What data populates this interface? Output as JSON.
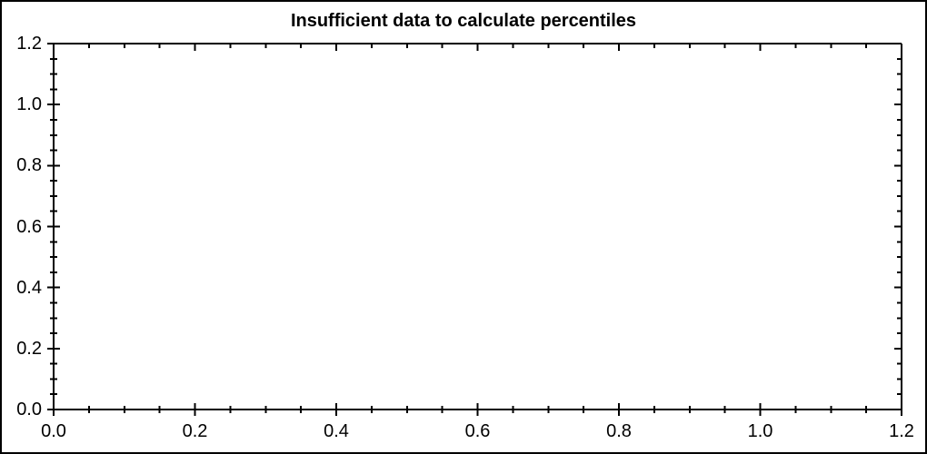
{
  "window": {
    "background": "#ffffff",
    "border_color": "#000000"
  },
  "chart_data": {
    "type": "scatter",
    "title": "Insufficient data to calculate percentiles",
    "subtitle": "",
    "xlabel": "",
    "ylabel": "",
    "xlim": [
      0,
      1.2
    ],
    "ylim": [
      0,
      1.2
    ],
    "x_major_ticks": [
      0,
      0.2,
      0.4,
      0.6,
      0.8,
      1.0,
      1.2
    ],
    "y_major_ticks": [
      0,
      0.2,
      0.4,
      0.6,
      0.8,
      1.0,
      1.2
    ],
    "x_tick_labels": [
      "0.0",
      "0.2",
      "0.4",
      "0.6",
      "0.8",
      "1.0",
      "1.2"
    ],
    "y_tick_labels": [
      "0.0",
      "0.2",
      "0.4",
      "0.6",
      "0.8",
      "1.0",
      "1.2"
    ],
    "minor_tick_step": 0.05,
    "grid": false,
    "legend": null,
    "series": [],
    "axis_color": "#000000",
    "text_color": "#000000"
  }
}
